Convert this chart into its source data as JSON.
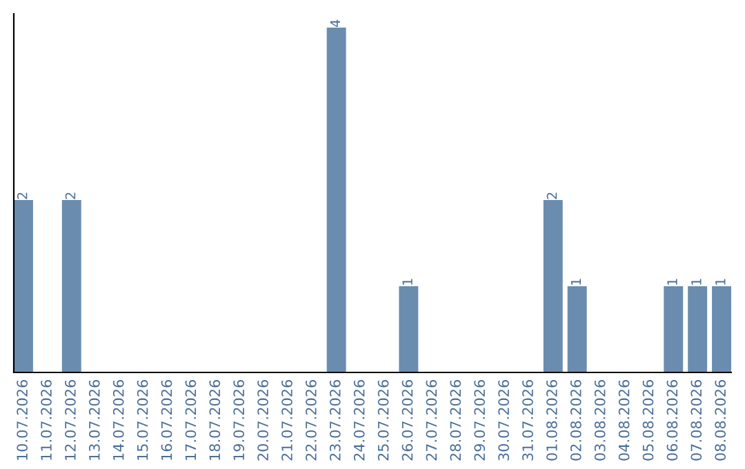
{
  "chart_data": {
    "type": "bar",
    "categories": [
      "10.07.2026",
      "11.07.2026",
      "12.07.2026",
      "13.07.2026",
      "14.07.2026",
      "15.07.2026",
      "16.07.2026",
      "17.07.2026",
      "18.07.2026",
      "19.07.2026",
      "20.07.2026",
      "21.07.2026",
      "22.07.2026",
      "23.07.2026",
      "24.07.2026",
      "25.07.2026",
      "26.07.2026",
      "27.07.2026",
      "28.07.2026",
      "29.07.2026",
      "30.07.2026",
      "31.07.2026",
      "01.08.2026",
      "02.08.2026",
      "03.08.2026",
      "04.08.2026",
      "05.08.2026",
      "06.08.2026",
      "07.08.2026",
      "08.08.2026"
    ],
    "values": [
      2,
      0,
      2,
      0,
      0,
      0,
      0,
      0,
      0,
      0,
      0,
      0,
      0,
      4,
      0,
      0,
      1,
      0,
      0,
      0,
      0,
      0,
      2,
      1,
      0,
      0,
      0,
      1,
      1,
      1
    ],
    "value_labels": [
      "2",
      null,
      "2",
      null,
      null,
      null,
      null,
      null,
      null,
      null,
      null,
      null,
      null,
      "4",
      null,
      null,
      "1",
      null,
      null,
      null,
      null,
      null,
      "2",
      "1",
      null,
      null,
      null,
      "1",
      "1",
      "1"
    ],
    "color": "#6a8caf",
    "grid": false,
    "legend": false
  }
}
